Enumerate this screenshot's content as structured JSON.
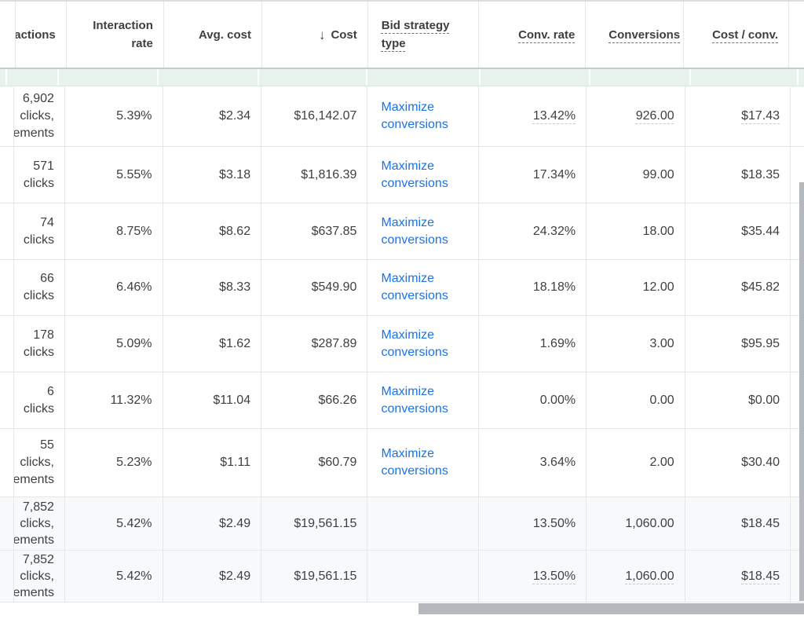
{
  "table": {
    "sort_icon": {
      "name": "arrow-down-icon",
      "glyph": "↓"
    },
    "clipped_left_column_label": "actions",
    "columns": [
      {
        "id": "interactions",
        "label": "actions",
        "align": "right",
        "dashed": false
      },
      {
        "id": "interaction_rate",
        "label": "Interaction rate",
        "align": "right",
        "dashed": false
      },
      {
        "id": "avg_cost",
        "label": "Avg. cost",
        "align": "right",
        "dashed": false
      },
      {
        "id": "cost",
        "label": "Cost",
        "align": "right",
        "dashed": false,
        "sorted": "descending"
      },
      {
        "id": "bid_strategy_type",
        "label": "Bid strategy type",
        "align": "left",
        "dashed": true
      },
      {
        "id": "conv_rate",
        "label": "Conv. rate",
        "align": "right",
        "dashed": true
      },
      {
        "id": "conversions",
        "label": "Conversions",
        "align": "right",
        "dashed": true
      },
      {
        "id": "cost_per_conv",
        "label": "Cost / conv.",
        "align": "right",
        "dashed": true
      }
    ],
    "rows": [
      {
        "interactions": "6,902\nclicks,\nements",
        "interaction_rate": "5.39%",
        "avg_cost": "$2.34",
        "cost": "$16,142.07",
        "bid_strategy_type": "Maximize conversions",
        "conv_rate": "13.42%",
        "conversions": "926.00",
        "cost_per_conv": "$17.43",
        "summary": false,
        "value_underline": true
      },
      {
        "interactions": "571\nclicks",
        "interaction_rate": "5.55%",
        "avg_cost": "$3.18",
        "cost": "$1,816.39",
        "bid_strategy_type": "Maximize conversions",
        "conv_rate": "17.34%",
        "conversions": "99.00",
        "cost_per_conv": "$18.35",
        "summary": false,
        "value_underline": false
      },
      {
        "interactions": "74\nclicks",
        "interaction_rate": "8.75%",
        "avg_cost": "$8.62",
        "cost": "$637.85",
        "bid_strategy_type": "Maximize conversions",
        "conv_rate": "24.32%",
        "conversions": "18.00",
        "cost_per_conv": "$35.44",
        "summary": false,
        "value_underline": false
      },
      {
        "interactions": "66\nclicks",
        "interaction_rate": "6.46%",
        "avg_cost": "$8.33",
        "cost": "$549.90",
        "bid_strategy_type": "Maximize conversions",
        "conv_rate": "18.18%",
        "conversions": "12.00",
        "cost_per_conv": "$45.82",
        "summary": false,
        "value_underline": false
      },
      {
        "interactions": "178\nclicks",
        "interaction_rate": "5.09%",
        "avg_cost": "$1.62",
        "cost": "$287.89",
        "bid_strategy_type": "Maximize conversions",
        "conv_rate": "1.69%",
        "conversions": "3.00",
        "cost_per_conv": "$95.95",
        "summary": false,
        "value_underline": false
      },
      {
        "interactions": "6\nclicks",
        "interaction_rate": "11.32%",
        "avg_cost": "$11.04",
        "cost": "$66.26",
        "bid_strategy_type": "Maximize conversions",
        "conv_rate": "0.00%",
        "conversions": "0.00",
        "cost_per_conv": "$0.00",
        "summary": false,
        "value_underline": false
      },
      {
        "interactions": "55\nclicks,\nements",
        "interaction_rate": "5.23%",
        "avg_cost": "$1.11",
        "cost": "$60.79",
        "bid_strategy_type": "Maximize conversions",
        "conv_rate": "3.64%",
        "conversions": "2.00",
        "cost_per_conv": "$30.40",
        "summary": false,
        "value_underline": false
      },
      {
        "interactions": "7,852\nclicks,\nements",
        "interaction_rate": "5.42%",
        "avg_cost": "$2.49",
        "cost": "$19,561.15",
        "bid_strategy_type": "",
        "conv_rate": "13.50%",
        "conversions": "1,060.00",
        "cost_per_conv": "$18.45",
        "summary": true,
        "value_underline": false
      },
      {
        "interactions": "7,852\nclicks,\nements",
        "interaction_rate": "5.42%",
        "avg_cost": "$2.49",
        "cost": "$19,561.15",
        "bid_strategy_type": "",
        "conv_rate": "13.50%",
        "conversions": "1,060.00",
        "cost_per_conv": "$18.45",
        "summary": true,
        "value_underline": true
      }
    ]
  },
  "colors": {
    "link_blue": "#1a73e8",
    "filter_row_green": "#e7f3ec",
    "summary_row_gray": "#f8f9fa",
    "text_dark": "#3c4043",
    "border_gray": "#e5e6e8",
    "header_border_gray": "#c7cace",
    "scrollbar_thumb_gray": "#b5b8bc"
  }
}
